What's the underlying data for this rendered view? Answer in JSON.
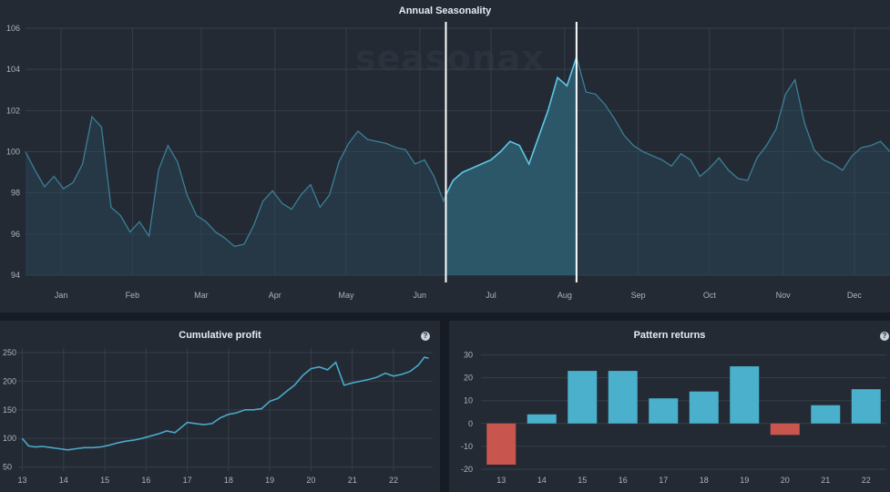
{
  "watermark": "seasonax",
  "charts": {
    "seasonality": {
      "title": "Annual Seasonality",
      "y_ticks": [
        "106",
        "104",
        "102",
        "100",
        "98",
        "96",
        "94"
      ],
      "x_ticks": [
        "Jan",
        "Feb",
        "Mar",
        "Apr",
        "May",
        "Jun",
        "Jul",
        "Aug",
        "Sep",
        "Oct",
        "Nov",
        "Dec"
      ]
    },
    "cumulative": {
      "title": "Cumulative profit",
      "y_ticks": [
        "250",
        "200",
        "150",
        "100",
        "50"
      ],
      "x_ticks": [
        "13",
        "14",
        "15",
        "16",
        "17",
        "18",
        "19",
        "20",
        "21",
        "22"
      ]
    },
    "returns": {
      "title": "Pattern returns",
      "y_ticks": [
        "30",
        "20",
        "10",
        "0",
        "-10",
        "-20"
      ],
      "x_ticks": [
        "13",
        "14",
        "15",
        "16",
        "17",
        "18",
        "19",
        "20",
        "21",
        "22"
      ]
    }
  },
  "colors": {
    "line": "#4aa9c8",
    "positive_bar": "#4ab0cc",
    "negative_bar": "#c9554f",
    "highlight_border": "#ffffff"
  },
  "chart_data": [
    {
      "type": "area",
      "title": "Annual Seasonality",
      "xlabel": "",
      "ylabel": "",
      "ylim": [
        94,
        106
      ],
      "x_unit": "day_of_year",
      "highlight": {
        "start_day": 178,
        "end_day": 233
      },
      "x": [
        1,
        5,
        9,
        13,
        17,
        21,
        25,
        29,
        33,
        37,
        41,
        45,
        49,
        53,
        57,
        61,
        65,
        69,
        73,
        77,
        81,
        85,
        89,
        93,
        97,
        101,
        105,
        109,
        113,
        117,
        121,
        125,
        129,
        133,
        137,
        141,
        145,
        149,
        153,
        157,
        161,
        165,
        169,
        173,
        177,
        178,
        181,
        185,
        189,
        193,
        197,
        201,
        205,
        209,
        213,
        217,
        221,
        225,
        229,
        233,
        237,
        241,
        245,
        249,
        253,
        257,
        261,
        265,
        269,
        273,
        277,
        281,
        285,
        289,
        293,
        297,
        301,
        305,
        309,
        313,
        317,
        321,
        325,
        329,
        333,
        337,
        341,
        345,
        349,
        353,
        357,
        361,
        365
      ],
      "values": [
        100.0,
        99.1,
        98.3,
        98.8,
        98.2,
        98.5,
        99.4,
        101.7,
        101.2,
        97.3,
        96.9,
        96.1,
        96.6,
        95.9,
        99.1,
        100.3,
        99.5,
        97.9,
        96.9,
        96.6,
        96.1,
        95.8,
        95.4,
        95.5,
        96.4,
        97.6,
        98.1,
        97.5,
        97.2,
        97.9,
        98.4,
        97.3,
        97.9,
        99.5,
        100.4,
        101.0,
        100.6,
        100.5,
        100.4,
        100.2,
        100.1,
        99.4,
        99.6,
        98.8,
        97.6,
        97.9,
        98.6,
        99.0,
        99.2,
        99.4,
        99.6,
        100.0,
        100.5,
        100.3,
        99.4,
        100.7,
        102.0,
        103.6,
        103.2,
        104.6,
        102.9,
        102.8,
        102.3,
        101.6,
        100.8,
        100.3,
        100.0,
        99.8,
        99.6,
        99.3,
        99.9,
        99.6,
        98.8,
        99.2,
        99.7,
        99.1,
        98.7,
        98.6,
        99.7,
        100.3,
        101.1,
        102.8,
        103.5,
        101.4,
        100.1,
        99.6,
        99.4,
        99.1,
        99.8,
        100.2,
        100.3,
        100.5,
        100.0
      ]
    },
    {
      "type": "line",
      "title": "Cumulative profit",
      "xlabel": "",
      "ylabel": "",
      "ylim": [
        43,
        258
      ],
      "xlim": [
        12.9,
        22.95
      ],
      "x": [
        13.0,
        13.15,
        13.3,
        13.5,
        13.7,
        13.9,
        14.1,
        14.3,
        14.5,
        14.7,
        14.9,
        15.1,
        15.3,
        15.5,
        15.7,
        15.9,
        16.1,
        16.3,
        16.5,
        16.7,
        16.9,
        17.0,
        17.2,
        17.4,
        17.6,
        17.8,
        18.0,
        18.2,
        18.4,
        18.6,
        18.8,
        19.0,
        19.2,
        19.4,
        19.6,
        19.8,
        20.0,
        20.2,
        20.4,
        20.6,
        20.8,
        21.0,
        21.2,
        21.4,
        21.6,
        21.8,
        22.0,
        22.2,
        22.4,
        22.6,
        22.75,
        22.85
      ],
      "values": [
        100,
        87,
        85,
        86,
        84,
        82,
        80,
        82,
        84,
        84,
        85,
        88,
        92,
        95,
        97,
        100,
        104,
        108,
        113,
        110,
        122,
        128,
        126,
        124,
        126,
        136,
        142,
        145,
        150,
        150,
        152,
        165,
        170,
        182,
        193,
        210,
        222,
        225,
        220,
        233,
        193,
        197,
        200,
        203,
        207,
        214,
        209,
        212,
        217,
        228,
        242,
        240
      ]
    },
    {
      "type": "bar",
      "title": "Pattern returns",
      "xlabel": "",
      "ylabel": "",
      "ylim": [
        -22,
        33
      ],
      "categories": [
        "13",
        "14",
        "15",
        "16",
        "17",
        "18",
        "19",
        "20",
        "21",
        "22"
      ],
      "values": [
        -18,
        4,
        23,
        23,
        11,
        14,
        25,
        -5,
        8,
        15
      ]
    }
  ]
}
